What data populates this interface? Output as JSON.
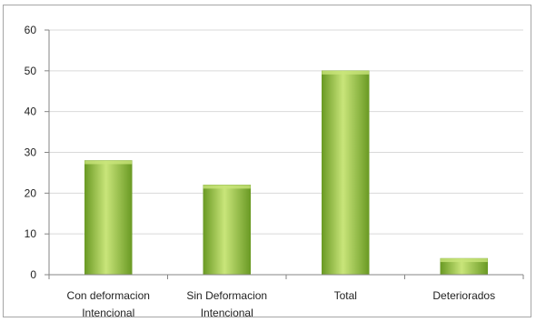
{
  "chart_data": {
    "type": "bar",
    "title": "",
    "xlabel": "",
    "ylabel": "",
    "categories": [
      [
        "Con deformacion",
        "Intencional"
      ],
      [
        "Sin Deformacion",
        "Intencional"
      ],
      [
        "Total"
      ],
      [
        "Deteriorados"
      ]
    ],
    "values": [
      28,
      22,
      50,
      4
    ],
    "ylim": [
      0,
      60
    ],
    "yticks": [
      0,
      10,
      20,
      30,
      40,
      50,
      60
    ],
    "grid": true,
    "legend": "none",
    "bar_color": "#8cbf3a",
    "bar_color_light": "#c9e57a",
    "bar_color_dark": "#6a9a24",
    "grid_color": "#d9d9d9"
  }
}
